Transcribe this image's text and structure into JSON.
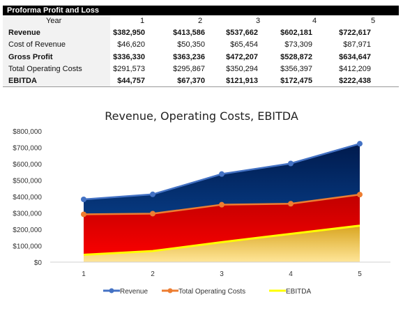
{
  "table": {
    "title": "Proforma Profit and Loss",
    "header_label": "Year",
    "years": [
      "1",
      "2",
      "3",
      "4",
      "5"
    ],
    "rows": [
      {
        "label": "Revenue",
        "bold": true,
        "values": [
          "$382,950",
          "$413,586",
          "$537,662",
          "$602,181",
          "$722,617"
        ]
      },
      {
        "label": "Cost of Revenue",
        "bold": false,
        "values": [
          "$46,620",
          "$50,350",
          "$65,454",
          "$73,309",
          "$87,971"
        ]
      },
      {
        "label": "Gross Profit",
        "bold": true,
        "values": [
          "$336,330",
          "$363,236",
          "$472,207",
          "$528,872",
          "$634,647"
        ]
      },
      {
        "label": "Total Operating Costs",
        "bold": false,
        "values": [
          "$291,573",
          "$295,867",
          "$350,294",
          "$356,397",
          "$412,209"
        ]
      },
      {
        "label": "EBITDA",
        "bold": true,
        "values": [
          "$44,757",
          "$67,370",
          "$121,913",
          "$172,475",
          "$222,438"
        ]
      }
    ]
  },
  "chart_data": {
    "type": "area",
    "title": "Revenue, Operating Costs, EBITDA",
    "x": [
      1,
      2,
      3,
      4,
      5
    ],
    "x_tick_labels": [
      "1",
      "2",
      "3",
      "4",
      "5"
    ],
    "ylim": [
      0,
      800000
    ],
    "y_ticks": [
      0,
      100000,
      200000,
      300000,
      400000,
      500000,
      600000,
      700000,
      800000
    ],
    "y_tick_labels": [
      "$0",
      "$100,000",
      "$200,000",
      "$300,000",
      "$400,000",
      "$500,000",
      "$600,000",
      "$700,000",
      "$800,000"
    ],
    "grid": false,
    "legend": "bottom",
    "series": [
      {
        "name": "Revenue",
        "values": [
          382950,
          413586,
          537662,
          602181,
          722617
        ],
        "line_color": "#4472c4",
        "fill_top": "#001a4d",
        "fill_bottom": "#0b4ea2"
      },
      {
        "name": "Total Operating Costs",
        "values": [
          291573,
          295867,
          350294,
          356397,
          412209
        ],
        "line_color": "#ed7d31",
        "fill_top": "#c00000",
        "fill_bottom": "#ff0000"
      },
      {
        "name": "EBITDA",
        "values": [
          44757,
          67370,
          121913,
          172475,
          222438
        ],
        "line_color": "#ffff00",
        "fill_top": "#d9a520",
        "fill_bottom": "#ffe699"
      }
    ]
  }
}
